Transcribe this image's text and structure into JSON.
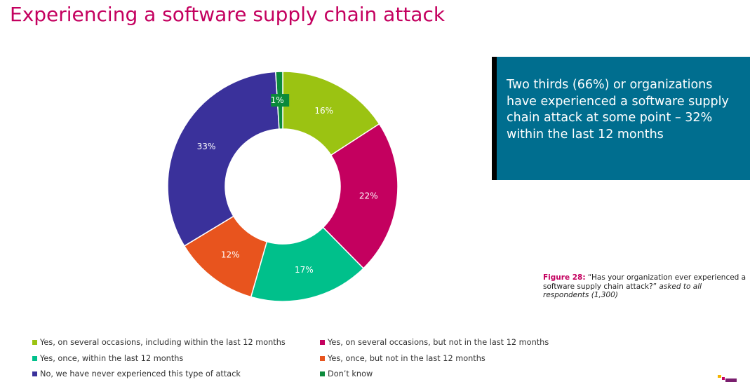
{
  "title": "Experiencing a software supply chain attack",
  "callout": {
    "text": "Two thirds (66%) or organizations have experienced a software supply chain attack at some point – 32% within the last 12 months",
    "background": "#006e8f"
  },
  "figure_caption": {
    "label": "Figure 28:",
    "question": " “Has your organization ever experienced a software supply chain attack?”",
    "note": " asked to all respondents (1,300)"
  },
  "chart_data": {
    "type": "pie",
    "donut": true,
    "categories": [
      "Yes, on several occasions, including within the last 12 months",
      "Yes, on several occasions, but not in the last 12 months",
      "Yes, once, within the last 12 months",
      "Yes, once, but not in the last 12 months",
      "No, we have never experienced this type of attack",
      "Don’t know"
    ],
    "values": [
      16,
      22,
      17,
      12,
      33,
      1
    ],
    "data_labels": [
      "16%",
      "22%",
      "17%",
      "12%",
      "33%",
      "1%"
    ],
    "colors": [
      "#9bc312",
      "#c4005f",
      "#00c08b",
      "#e8541e",
      "#3a319b",
      "#0b8a3b"
    ],
    "legend_position": "bottom"
  },
  "legend": [
    {
      "label": "Yes, on several occasions, including within the last 12 months",
      "color": "#9bc312"
    },
    {
      "label": "Yes, on several occasions, but not in the last 12 months",
      "color": "#c4005f"
    },
    {
      "label": "Yes, once, within the last 12 months",
      "color": "#00c08b"
    },
    {
      "label": "Yes, once, but not in the last 12 months",
      "color": "#e8541e"
    },
    {
      "label": "No, we have never experienced this type of attack",
      "color": "#3a319b"
    },
    {
      "label": "Don’t know",
      "color": "#0b8a3b"
    }
  ],
  "logo_colors": [
    "#f5b400",
    "#c4005f",
    "#7a1f6e"
  ]
}
